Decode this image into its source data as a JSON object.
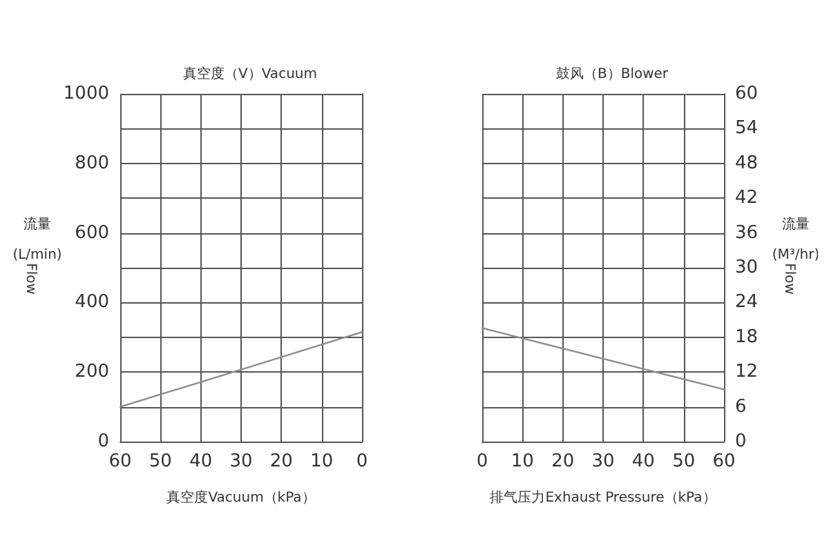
{
  "chart_data": [
    {
      "type": "line",
      "title": "真空度（V）Vacuum",
      "xlabel": "真空度Vacuum（kPa）",
      "ylabel": "流量\n(L/min)\nFlow",
      "xlim": [
        60,
        0
      ],
      "xticks": [
        60,
        50,
        40,
        30,
        20,
        10,
        0
      ],
      "ylim": [
        0,
        1000
      ],
      "yticks": [
        0,
        {
          "value": 100,
          "label": null
        },
        200,
        {
          "value": 300,
          "label": null
        },
        400,
        {
          "value": 500,
          "label": null
        },
        600,
        {
          "value": 700,
          "label": null
        },
        800,
        {
          "value": 900,
          "label": null
        },
        1000
      ],
      "grid": true,
      "marker": "none",
      "line_style": "solid",
      "series": [
        {
          "color": "#8c8c8c",
          "x": [
            60,
            30,
            0
          ],
          "values": [
            100,
            207,
            315
          ]
        }
      ]
    },
    {
      "type": "line",
      "title": "鼓风（B）Blower",
      "xlabel": "排气压力Exhaust Pressure（kPa）",
      "y2label": "流量\n(M³/hr)\nFlow",
      "xlim": [
        0,
        60
      ],
      "xticks": [
        0,
        10,
        20,
        30,
        40,
        50,
        60
      ],
      "y2lim": [
        0,
        60
      ],
      "y2ticks": [
        0,
        6,
        12,
        18,
        24,
        30,
        36,
        42,
        48,
        54,
        60
      ],
      "grid": true,
      "marker": "none",
      "line_style": "solid",
      "series": [
        {
          "color": "#8c8c8c",
          "x": [
            0,
            30,
            60
          ],
          "values": [
            19.6,
            14.3,
            9.0
          ],
          "axis": "y2"
        }
      ]
    }
  ]
}
